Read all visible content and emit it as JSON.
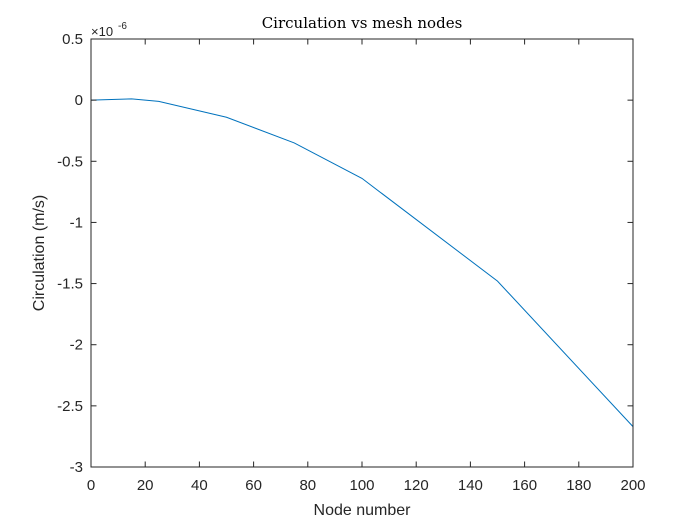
{
  "chart_data": {
    "type": "line",
    "title": "Circulation vs mesh nodes",
    "xlabel": "Node number",
    "ylabel": "Circulation (m/s)",
    "exponent_label": "×10",
    "exponent_power": "-6",
    "xlim": [
      0,
      200
    ],
    "ylim": [
      -3,
      0.5
    ],
    "x_ticks": [
      "0",
      "20",
      "40",
      "60",
      "80",
      "100",
      "120",
      "140",
      "160",
      "180",
      "200"
    ],
    "y_ticks": [
      "0.5",
      "0",
      "-0.5",
      "-1",
      "-1.5",
      "-2",
      "-2.5",
      "-3"
    ],
    "grid": false,
    "series": [
      {
        "color": "#0072BD",
        "x": [
          0,
          15,
          25,
          50,
          75,
          100,
          150,
          200
        ],
        "y": [
          0.0,
          0.01,
          -0.01,
          -0.14,
          -0.35,
          -0.64,
          -1.48,
          -2.67
        ]
      }
    ]
  }
}
